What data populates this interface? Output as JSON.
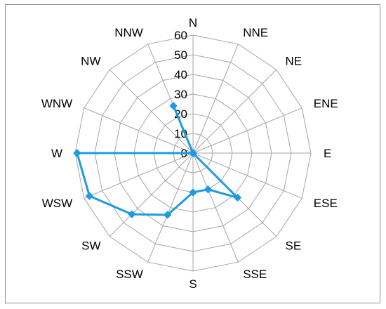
{
  "chart_data": {
    "type": "radar",
    "title": "",
    "categories": [
      "N",
      "NNE",
      "NE",
      "ENE",
      "E",
      "ESE",
      "SE",
      "SSE",
      "S",
      "SSW",
      "SW",
      "WSW",
      "W",
      "WNW",
      "NW",
      "NNW"
    ],
    "series": [
      {
        "color": "#1e9be0",
        "values": [
          0,
          0,
          0,
          0,
          0,
          0,
          32,
          20,
          20,
          34,
          44,
          57,
          59,
          0,
          0,
          26
        ]
      }
    ],
    "rlim": [
      0,
      60
    ],
    "ticks": [
      0,
      10,
      20,
      30,
      40,
      50,
      60
    ],
    "tick_labels": [
      "0",
      "10",
      "20",
      "30",
      "40",
      "50",
      "60"
    ],
    "grid": true,
    "legend": "none"
  },
  "colors": {
    "grid": "#a6a6a6",
    "series": "#1e9be0",
    "frame": "#8c8c8c"
  }
}
